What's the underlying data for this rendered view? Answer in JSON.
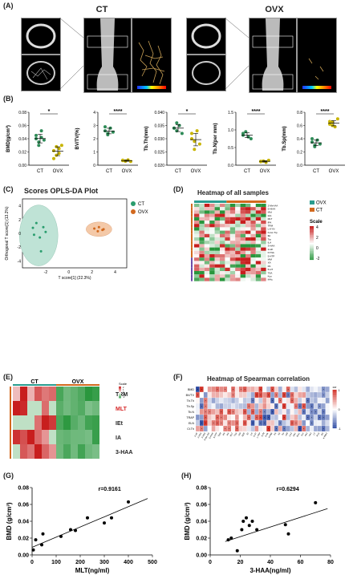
{
  "panels": {
    "a": "(A)",
    "b": "(B)",
    "c": "(C)",
    "d": "(D)",
    "e": "(E)",
    "f": "(F)",
    "g": "(G)",
    "h": "(H)"
  },
  "panelA": {
    "ct_title": "CT",
    "ovx_title": "OVX"
  },
  "panelB": {
    "charts": [
      {
        "ylabel": "BMD(g/cm³)",
        "ticks": [
          "0.08",
          "0.06",
          "0.04",
          "0.02",
          "0.00"
        ],
        "sig": "*",
        "ct": [
          0.04,
          0.035,
          0.052,
          0.038,
          0.045,
          0.03,
          0.042
        ],
        "ovx": [
          0.022,
          0.015,
          0.025,
          0.03,
          0.01,
          0.028,
          0.018
        ],
        "max": 0.08
      },
      {
        "ylabel": "BV/TV(%)",
        "ticks": [
          "4",
          "3",
          "2",
          "1",
          "0"
        ],
        "sig": "****",
        "ct": [
          2.6,
          2.4,
          2.8,
          2.5,
          2.9,
          2.3
        ],
        "ovx": [
          0.35,
          0.3,
          0.4,
          0.28,
          0.38,
          0.32
        ],
        "max": 4
      },
      {
        "ylabel": "Tb.Th(mm)",
        "ticks": [
          "0.040",
          "0.035",
          "0.030",
          "0.025",
          "0.020"
        ],
        "sig": "*",
        "ct": [
          0.034,
          0.033,
          0.035,
          0.032,
          0.034,
          0.036
        ],
        "ovx": [
          0.03,
          0.026,
          0.033,
          0.028,
          0.032,
          0.029
        ],
        "max": 0.04,
        "min": 0.02
      },
      {
        "ylabel": "Tb.N(per mm)",
        "ticks": [
          "1.5",
          "1.0",
          "0.5",
          "0.0"
        ],
        "sig": "****",
        "ct": [
          0.85,
          0.95,
          0.8,
          0.75,
          0.9
        ],
        "ovx": [
          0.1,
          0.12,
          0.08,
          0.14,
          0.11
        ],
        "max": 1.5
      },
      {
        "ylabel": "Tb.Sp(mm)",
        "ticks": [
          "0.8",
          "0.6",
          "0.4",
          "0.2",
          "0.0"
        ],
        "sig": "****",
        "ct": [
          0.35,
          0.3,
          0.38,
          0.32,
          0.4,
          0.28
        ],
        "ovx": [
          0.62,
          0.65,
          0.58,
          0.7,
          0.66,
          0.6
        ],
        "max": 0.8
      }
    ],
    "x_ct": "CT",
    "x_ovx": "OVX"
  },
  "panelC": {
    "title": "Scores OPLS-DA Plot",
    "xlabel": "T score[1] (22.3%)",
    "ylabel": "Orthogonal T score[1] (13.2%)",
    "legend_ct": "CT",
    "legend_ovx": "OVX",
    "xticks": [
      "-2",
      "0",
      "2",
      "4"
    ],
    "xtick_vals": [
      -2,
      0,
      2,
      4
    ],
    "yticks": [
      "4",
      "2",
      "0",
      "-2",
      "-4"
    ],
    "ytick_vals": [
      4,
      2,
      0,
      -2,
      -4
    ],
    "xlim": [
      -4,
      5
    ],
    "ylim": [
      -5,
      5
    ],
    "ct_points": [
      [
        -2.8,
        1.5
      ],
      [
        -2.2,
        0.9
      ],
      [
        -3.0,
        -0.2
      ],
      [
        -2.5,
        -0.6
      ],
      [
        -2.0,
        0.2
      ],
      [
        -3.1,
        0.8
      ],
      [
        -2.4,
        -2.6
      ]
    ],
    "ovx_points": [
      [
        2.2,
        0.7
      ],
      [
        2.6,
        0.9
      ],
      [
        3.0,
        0.6
      ],
      [
        2.5,
        0.3
      ],
      [
        2.9,
        0.5
      ]
    ]
  },
  "panelD": {
    "title": "Heatmap of all samples",
    "legend_ovx": "OVX",
    "legend_ct": "CT",
    "scale_label": "Scale",
    "scale_ticks": [
      "4",
      "2",
      "0",
      "-2"
    ],
    "row_labels": [
      "2-Me-IAA",
      "5-HIAA",
      "IAld",
      "IAA",
      "MLT",
      "IPA",
      "TRM",
      "L-KYN",
      "N-Ac-Trp",
      "IEt",
      "Trp",
      "ILA",
      "3-HAA",
      "3-HK",
      "KYNA",
      "5-HTP",
      "IAM",
      "XA",
      "PA",
      "5-HT",
      "TSA",
      "Kyn",
      "IAAc"
    ]
  },
  "panelE": {
    "ct": "CT",
    "ovx": "OVX",
    "scale_label": "Scale",
    "scale_ticks": [
      "2",
      "1",
      "0",
      "-1",
      "-2"
    ],
    "rows": [
      "TRM",
      "MLT",
      "IEt",
      "IA",
      "3-HAA"
    ]
  },
  "panelF": {
    "title": "Heatmap of Spearman correlation",
    "cor_label": "cor",
    "scale_ticks": [
      "1",
      "0",
      "-1"
    ],
    "rows": [
      "BMD",
      "BV/TV",
      "Tb.Th",
      "Tb.Sp",
      "Tb.N",
      "TRAP",
      "ELN",
      "Ct.Th"
    ],
    "cols": [
      "2-HF",
      "2-HAA",
      "3-HAA",
      "5-Me-IAA",
      "5-HIAA",
      "5-HTP",
      "TRM",
      "IPA",
      "IAA",
      "MLT",
      "TSA",
      "IAld",
      "SER",
      "IEt",
      "ILA",
      "5-HT",
      "L-TRP",
      "KYN",
      "3-HK",
      "KYNA",
      "PA",
      "XA",
      "Trp",
      "IAM",
      "ILA2",
      "IAAc",
      "N-Ac",
      "Kyn",
      "PA2",
      "XA2",
      "CT",
      "IPyA",
      "QA",
      "KYNA2"
    ]
  },
  "panelG": {
    "r": "r=0.9161",
    "xlabel": "MLT(ng/ml)",
    "ylabel": "BMD (g/cm³)",
    "xticks": [
      "0",
      "100",
      "200",
      "300",
      "400",
      "500"
    ],
    "xtick_vals": [
      0,
      100,
      200,
      300,
      400,
      500
    ],
    "yticks": [
      "0.08",
      "0.06",
      "0.04",
      "0.02",
      "0.00"
    ],
    "ytick_vals": [
      0.08,
      0.06,
      0.04,
      0.02,
      0.0
    ],
    "xlim": [
      0,
      500
    ],
    "ylim": [
      0,
      0.08
    ],
    "points": [
      [
        5,
        0.006
      ],
      [
        15,
        0.018
      ],
      [
        40,
        0.012
      ],
      [
        45,
        0.025
      ],
      [
        120,
        0.022
      ],
      [
        160,
        0.03
      ],
      [
        180,
        0.029
      ],
      [
        230,
        0.044
      ],
      [
        300,
        0.038
      ],
      [
        330,
        0.044
      ],
      [
        400,
        0.063
      ]
    ],
    "fit": [
      [
        0,
        0.009
      ],
      [
        480,
        0.067
      ]
    ]
  },
  "panelH": {
    "r": "r=0.6294",
    "xlabel": "3-HAA(ng/ml)",
    "ylabel": "BMD (g/cm³)",
    "xticks": [
      "0",
      "20",
      "40",
      "60",
      "80"
    ],
    "xtick_vals": [
      0,
      20,
      40,
      60,
      80
    ],
    "yticks": [
      "0.08",
      "0.06",
      "0.04",
      "0.02",
      "0.00"
    ],
    "ytick_vals": [
      0.08,
      0.06,
      0.04,
      0.02,
      0.0
    ],
    "xlim": [
      0,
      80
    ],
    "ylim": [
      0,
      0.08
    ],
    "points": [
      [
        12,
        0.018
      ],
      [
        14,
        0.02
      ],
      [
        18,
        0.005
      ],
      [
        21,
        0.03
      ],
      [
        22,
        0.04
      ],
      [
        24,
        0.044
      ],
      [
        26,
        0.035
      ],
      [
        28,
        0.04
      ],
      [
        31,
        0.03
      ],
      [
        50,
        0.036
      ],
      [
        52,
        0.025
      ],
      [
        70,
        0.062
      ]
    ],
    "fit": [
      [
        10,
        0.016
      ],
      [
        78,
        0.055
      ]
    ]
  }
}
